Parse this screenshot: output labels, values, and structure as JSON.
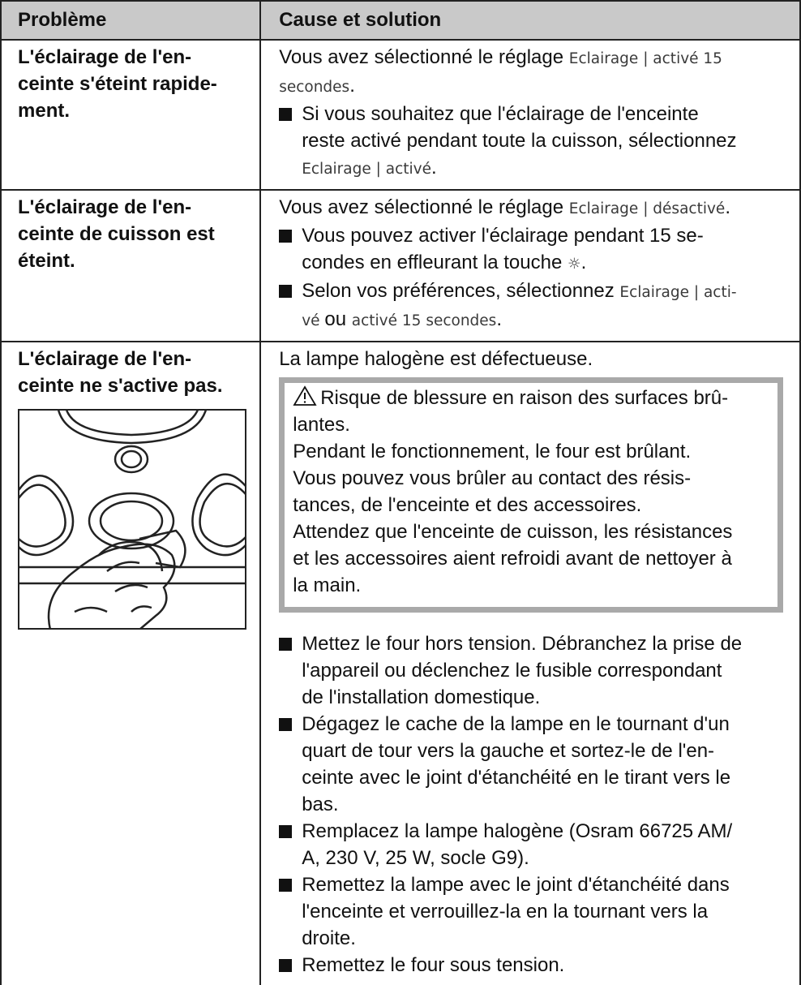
{
  "header": {
    "col1": "Problème",
    "col2": "Cause et solution"
  },
  "rows": [
    {
      "problem": [
        "L'éclairage de l'en-",
        "ceinte s'éteint rapide-",
        "ment."
      ],
      "intro": [
        [
          {
            "text": "Vous avez sélectionné le réglage "
          },
          {
            "display": "Eclairage | activé 15"
          }
        ],
        [
          {
            "display": "secondes"
          },
          {
            "text": "."
          }
        ]
      ],
      "bullets": [
        [
          "Si vous souhaitez que l'éclairage de l'enceinte",
          "reste activé pendant toute la cuisson, sélectionnez",
          [
            {
              "display": "Eclairage | activé"
            },
            {
              "text": "."
            }
          ]
        ]
      ]
    },
    {
      "problem": [
        "L'éclairage de l'en-",
        "ceinte de cuisson est",
        "éteint."
      ],
      "intro": [
        [
          {
            "text": "Vous avez sélectionné le réglage "
          },
          {
            "display": "Eclairage | désactivé"
          },
          {
            "text": "."
          }
        ]
      ],
      "bullets": [
        [
          "Vous pouvez activer l'éclairage pendant 15 se-",
          [
            {
              "text": "condes en effleurant la touche "
            },
            {
              "display": "☼"
            },
            {
              "text": "."
            }
          ]
        ],
        [
          [
            {
              "text": "Selon vos préférences, sélectionnez "
            },
            {
              "display": "Eclairage | acti-"
            }
          ],
          [
            {
              "display": "vé "
            },
            {
              "text": "ou "
            },
            {
              "display": "activé 15 secondes"
            },
            {
              "text": "."
            }
          ]
        ]
      ]
    },
    {
      "problem": [
        "L'éclairage de l'en-",
        "ceinte ne s'active pas."
      ],
      "intro": [
        "La lampe halogène est défectueuse."
      ],
      "warning": [
        "Risque de blessure en raison des surfaces brû-",
        "lantes.",
        "Pendant le fonctionnement, le four est brûlant.",
        "Vous pouvez vous brûler au contact des résis-",
        "tances, de l'enceinte et des accessoires.",
        "Attendez que l'enceinte de cuisson, les résistances",
        "et les accessoires aient refroidi avant de nettoyer à",
        "la main."
      ],
      "bullets": [
        [
          "Mettez le four hors tension. Débranchez la prise de",
          "l'appareil ou déclenchez le fusible correspondant",
          "de l'installation domestique."
        ],
        [
          "Dégagez le cache de la lampe en le tournant d'un",
          "quart de tour vers la gauche et sortez-le de l'en-",
          "ceinte avec le joint d'étanchéité en le tirant vers le",
          "bas."
        ],
        [
          "Remplacez la lampe halogène (Osram 66725 AM/",
          "A, 230 V, 25 W, socle G9)."
        ],
        [
          "Remettez la lampe avec le joint d'étanchéité dans",
          "l'enceinte et verrouillez-la en la tournant vers la",
          "droite."
        ],
        [
          "Remettez le four sous tension."
        ]
      ]
    }
  ]
}
